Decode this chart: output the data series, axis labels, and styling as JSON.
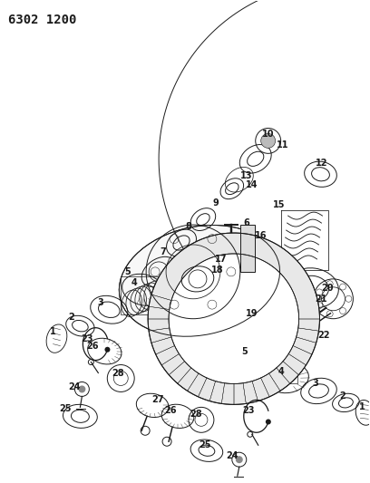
{
  "title": "6302 1200",
  "bg_color": "#ffffff",
  "line_color": "#1a1a1a",
  "fig_width": 4.08,
  "fig_height": 5.33,
  "dpi": 100
}
